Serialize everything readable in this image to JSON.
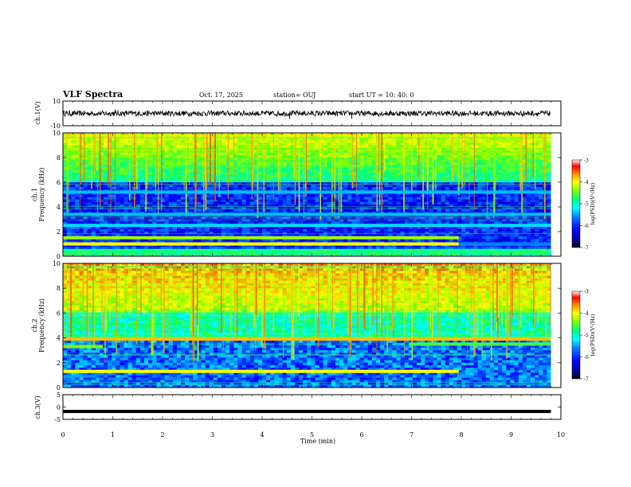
{
  "header": {
    "title": "VLF Spectra",
    "date": "Oct. 17, 2025",
    "station": "station= OUJ",
    "start_time": "start  UT =   10: 40: 0"
  },
  "chart_data": [
    {
      "id": "ch1-waveform",
      "type": "line",
      "ylabel": "ch.1(V)",
      "ylim": [
        -10,
        10
      ],
      "yticks": [
        10,
        -10
      ],
      "baseline": 0,
      "amplitude_typical": 2.2,
      "spikes": [
        {
          "t": 4.55,
          "v": -4.5
        },
        {
          "t": 5.8,
          "v": -4.2
        },
        {
          "t": 1.05,
          "v": 3.0
        }
      ]
    },
    {
      "id": "ch1-spectrogram",
      "type": "heatmap",
      "ylabel": "ch.1\nFrequency (kHz)",
      "ylim": [
        0,
        10
      ],
      "yticks": [
        0,
        2,
        4,
        6,
        8,
        10
      ],
      "bands": [
        {
          "f": 1.0,
          "t0": 0,
          "t1": 7.95,
          "level": -4.2
        },
        {
          "f": 1.5,
          "t0": 0,
          "t1": 7.95,
          "level": -4.5
        },
        {
          "f": 1.0,
          "t0": 7.95,
          "t1": 9.8,
          "level": -5.8
        },
        {
          "f": 5.2,
          "t0": 0,
          "t1": 9.8,
          "level": -5.6
        },
        {
          "f": 2.5,
          "t0": 0,
          "t1": 9.8,
          "level": -5.5
        },
        {
          "f": 3.4,
          "t0": 0,
          "t1": 9.8,
          "level": -5.6
        }
      ],
      "colorbar": {
        "label": "log(PSD)(V²/Hz)",
        "min": -7,
        "max": -3,
        "ticks": [
          -3,
          -4,
          -5,
          -6,
          -7
        ]
      }
    },
    {
      "id": "ch2-spectrogram",
      "type": "heatmap",
      "ylabel": "ch.2\nFrequency (kHz)",
      "ylim": [
        0,
        10
      ],
      "yticks": [
        0,
        2,
        4,
        6,
        8,
        10
      ],
      "bands": [
        {
          "f": 1.3,
          "t0": 0,
          "t1": 7.95,
          "level": -4.2
        },
        {
          "f": 3.3,
          "t0": 0,
          "t1": 0.8,
          "level": -4.6
        },
        {
          "f": 3.5,
          "t0": 6.95,
          "t1": 9.8,
          "level": -4.8
        },
        {
          "f": 3.9,
          "t0": 0,
          "t1": 9.8,
          "level": -4.0
        }
      ],
      "colorbar": {
        "label": "log(PSD)(V²/Hz)",
        "min": -7,
        "max": -3,
        "ticks": [
          -3,
          -4,
          -5,
          -6,
          -7
        ]
      }
    },
    {
      "id": "ch3-waveform",
      "type": "line",
      "ylabel": "ch.3(V)",
      "ylim": [
        -5,
        5
      ],
      "yticks": [
        5,
        0,
        -5
      ],
      "baseline": -1.8,
      "amplitude_typical": 0.3
    }
  ],
  "x_axis": {
    "label": "Time (min)",
    "range": [
      0,
      10
    ],
    "ticks": [
      0,
      1,
      2,
      3,
      4,
      5,
      6,
      7,
      8,
      9,
      10
    ],
    "data_end": 9.8
  },
  "colors": {
    "low": "#000080",
    "mid": "#00e060",
    "high": "#ff0000",
    "colormap": [
      "#000000",
      "#000090",
      "#0000ff",
      "#0080ff",
      "#00ffff",
      "#00ff80",
      "#80ff00",
      "#ffff00",
      "#ff8000",
      "#ff0000",
      "#ffffff"
    ]
  }
}
